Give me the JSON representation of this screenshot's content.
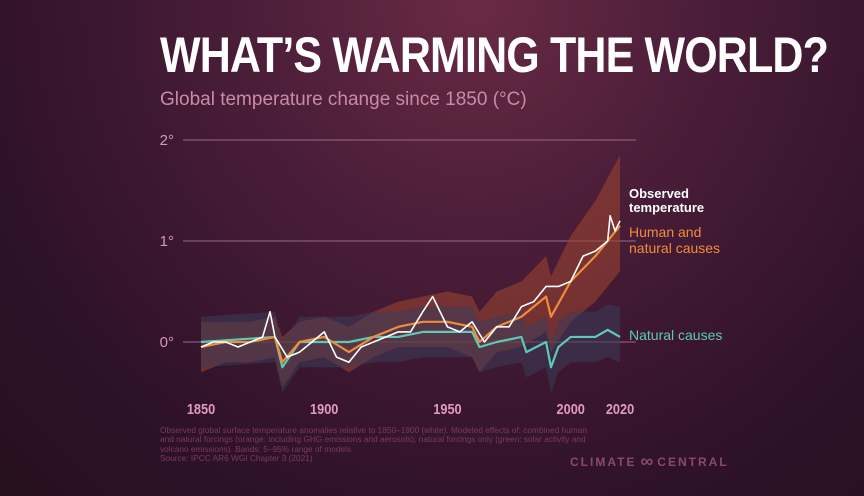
{
  "title": "WHAT’S WARMING THE WORLD?",
  "subtitle": "Global temperature change since 1850 (°C)",
  "footnote": "Observed global surface temperature anomalies relative to 1850–1900 (white). Modeled effects of: combined human and natural forcings (orange: including GHG emissions and aerosols); natural forcings only (green: solar activity and volcano emissions). Bands: 5–95% range of models.",
  "source": "Source: IPCC AR6 WGI Chapter 3 (2021)",
  "logo": {
    "left": "CLIMATE",
    "right": "CENTRAL"
  },
  "chart_data": {
    "type": "line",
    "title": "Global temperature change since 1850 (°C)",
    "xlim": [
      1850,
      2020
    ],
    "ylim": [
      -0.5,
      2
    ],
    "xticks": [
      {
        "v": 1850,
        "label": "1850"
      },
      {
        "v": 1900,
        "label": "1900"
      },
      {
        "v": 1950,
        "label": "1950"
      },
      {
        "v": 2000,
        "label": "2000"
      },
      {
        "v": 2020,
        "label": "2020"
      }
    ],
    "yticks": [
      {
        "v": 0,
        "label": "0°"
      },
      {
        "v": 1,
        "label": "1°"
      },
      {
        "v": 2,
        "label": "2°"
      }
    ],
    "grid": true,
    "series": [
      {
        "name": "Human and natural causes",
        "label": [
          "Human and",
          "natural causes"
        ],
        "color": "#f08c3c",
        "band_color": "#a0452f",
        "x": [
          1850,
          1860,
          1870,
          1880,
          1883,
          1890,
          1900,
          1910,
          1920,
          1930,
          1940,
          1950,
          1960,
          1963,
          1970,
          1980,
          1990,
          1992,
          2000,
          2010,
          2020
        ],
        "y": [
          -0.05,
          0,
          0,
          0.05,
          -0.2,
          0,
          0.05,
          -0.1,
          0.05,
          0.15,
          0.2,
          0.2,
          0.15,
          0,
          0.15,
          0.25,
          0.45,
          0.25,
          0.6,
          0.85,
          1.15
        ],
        "band_low": [
          -0.3,
          -0.2,
          -0.2,
          -0.15,
          -0.45,
          -0.2,
          -0.15,
          -0.3,
          -0.15,
          -0.05,
          -0.05,
          -0.05,
          -0.15,
          -0.3,
          -0.1,
          -0.05,
          0.1,
          -0.1,
          0.2,
          0.4,
          0.7
        ],
        "band_high": [
          0.2,
          0.2,
          0.2,
          0.25,
          0.05,
          0.2,
          0.25,
          0.15,
          0.3,
          0.4,
          0.45,
          0.5,
          0.45,
          0.3,
          0.5,
          0.6,
          0.85,
          0.65,
          1.05,
          1.4,
          1.85
        ]
      },
      {
        "name": "Natural causes",
        "label": [
          "Natural causes"
        ],
        "color": "#5ec9b4",
        "band_color": "#3b3d5a",
        "x": [
          1850,
          1880,
          1883,
          1890,
          1900,
          1910,
          1920,
          1930,
          1940,
          1950,
          1960,
          1963,
          1970,
          1980,
          1982,
          1990,
          1992,
          1995,
          2000,
          2010,
          2015,
          2020
        ],
        "y": [
          0,
          0.05,
          -0.25,
          0,
          0,
          0,
          0.05,
          0.05,
          0.1,
          0.1,
          0.1,
          -0.05,
          0,
          0.05,
          -0.1,
          0,
          -0.25,
          -0.05,
          0.05,
          0.05,
          0.12,
          0.05
        ],
        "band_low": [
          -0.25,
          -0.2,
          -0.5,
          -0.25,
          -0.25,
          -0.25,
          -0.2,
          -0.2,
          -0.15,
          -0.15,
          -0.15,
          -0.3,
          -0.25,
          -0.2,
          -0.35,
          -0.25,
          -0.5,
          -0.3,
          -0.2,
          -0.2,
          -0.15,
          -0.2
        ],
        "band_high": [
          0.25,
          0.3,
          0.0,
          0.25,
          0.25,
          0.25,
          0.3,
          0.3,
          0.35,
          0.35,
          0.35,
          0.2,
          0.25,
          0.3,
          0.15,
          0.25,
          0.0,
          0.2,
          0.3,
          0.3,
          0.37,
          0.35
        ]
      },
      {
        "name": "Observed temperature",
        "label": [
          "Observed",
          "temperature"
        ],
        "color": "#ffffff",
        "x": [
          1850,
          1855,
          1860,
          1865,
          1870,
          1875,
          1878,
          1880,
          1885,
          1890,
          1895,
          1900,
          1905,
          1910,
          1915,
          1920,
          1925,
          1930,
          1935,
          1940,
          1944,
          1950,
          1955,
          1960,
          1965,
          1970,
          1975,
          1980,
          1985,
          1990,
          1995,
          2000,
          2005,
          2010,
          2015,
          2016,
          2018,
          2020
        ],
        "y": [
          -0.05,
          0,
          0,
          -0.05,
          0,
          0.05,
          0.3,
          0.05,
          -0.15,
          -0.1,
          0,
          0.1,
          -0.15,
          -0.2,
          -0.05,
          0,
          0.05,
          0.1,
          0.1,
          0.3,
          0.45,
          0.15,
          0.1,
          0.2,
          0,
          0.15,
          0.15,
          0.35,
          0.4,
          0.55,
          0.55,
          0.6,
          0.85,
          0.9,
          1.0,
          1.25,
          1.1,
          1.2
        ]
      }
    ]
  }
}
